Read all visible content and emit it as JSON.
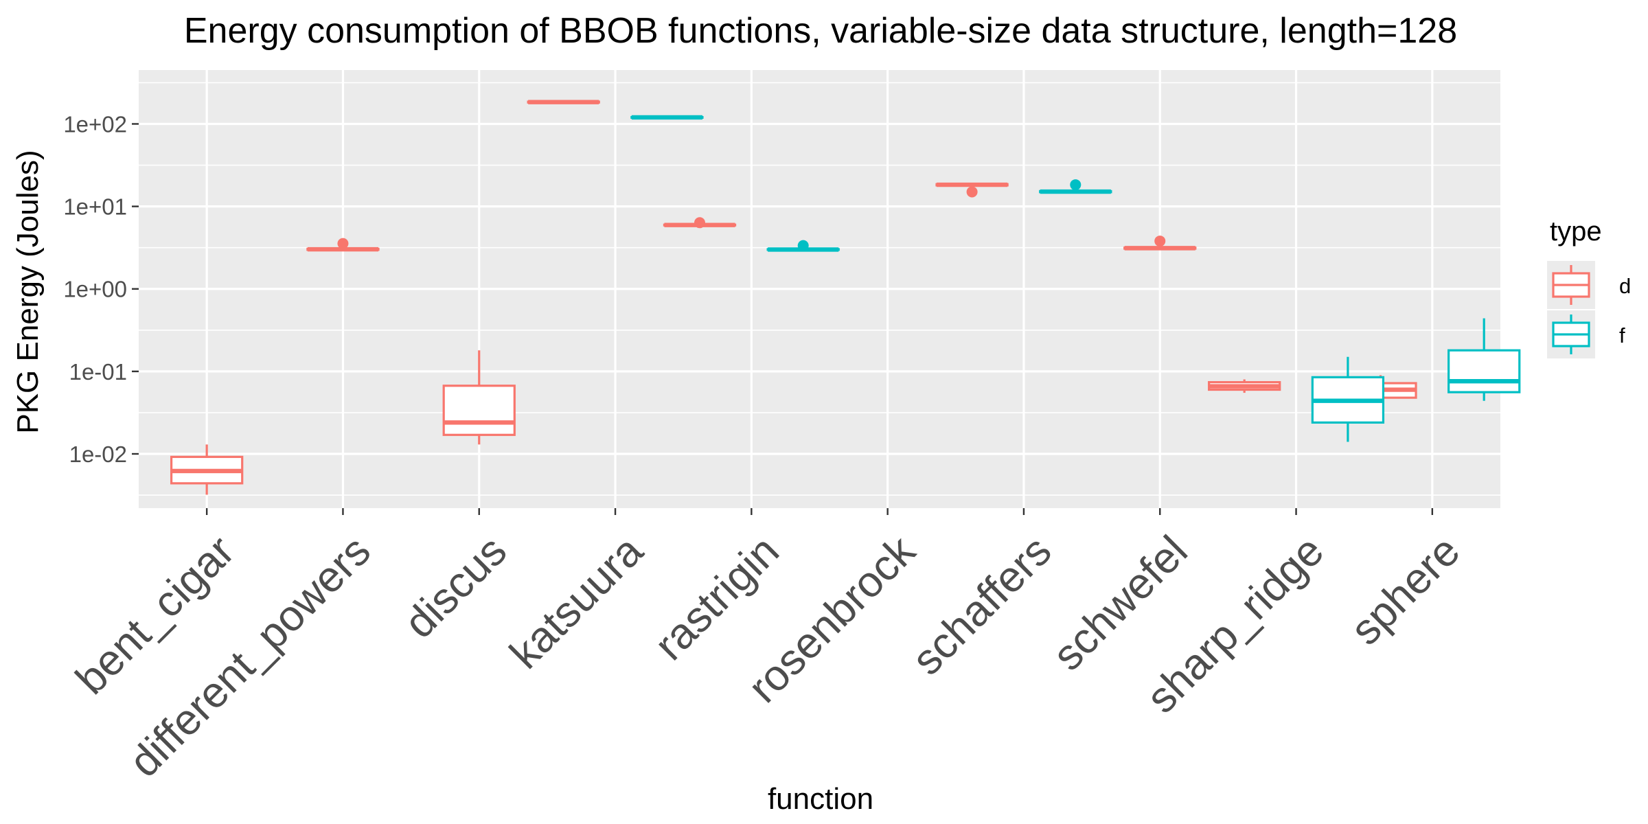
{
  "chart_data": {
    "type": "boxplot",
    "title": "Energy consumption of BBOB functions, variable-size data structure, length=128",
    "xlabel": "function",
    "ylabel": "PKG Energy (Joules)",
    "y_scale": "log10",
    "ylim": [
      0.0022,
      450
    ],
    "y_ticks": [
      {
        "value": 0.01,
        "label": "1e-02"
      },
      {
        "value": 0.1,
        "label": "1e-01"
      },
      {
        "value": 1,
        "label": "1e+00"
      },
      {
        "value": 10,
        "label": "1e+01"
      },
      {
        "value": 100,
        "label": "1e+02"
      }
    ],
    "grid": true,
    "categories": [
      "bent_cigar",
      "different_powers",
      "discus",
      "katsuura",
      "rastrigin",
      "rosenbrock",
      "schaffers",
      "schwefel",
      "sharp_ridge",
      "sphere"
    ],
    "legend": {
      "title": "type",
      "position": "right",
      "entries": [
        {
          "label": "d",
          "color": "#F8766D"
        },
        {
          "label": "f",
          "color": "#00BFC4"
        }
      ]
    },
    "series": [
      {
        "name": "d",
        "color": "#F8766D",
        "boxes": [
          {
            "category": "bent_cigar",
            "min": 0.0032,
            "q1": 0.0044,
            "median": 0.0062,
            "q3": 0.0092,
            "max": 0.013,
            "outliers": []
          },
          {
            "category": "different_powers",
            "min": 2.95,
            "q1": 2.98,
            "median": 3.02,
            "q3": 3.06,
            "max": 3.1,
            "outliers": [
              3.55
            ]
          },
          {
            "category": "discus",
            "min": 0.013,
            "q1": 0.017,
            "median": 0.024,
            "q3": 0.067,
            "max": 0.18,
            "outliers": []
          },
          {
            "category": "katsuura",
            "min": 180,
            "q1": 182,
            "median": 184,
            "q3": 186,
            "max": 188,
            "outliers": []
          },
          {
            "category": "rastrigin",
            "min": 5.85,
            "q1": 5.9,
            "median": 5.95,
            "q3": 6.0,
            "max": 6.05,
            "outliers": [
              6.35
            ]
          },
          {
            "category": "schaffers",
            "min": 17.8,
            "q1": 18.0,
            "median": 18.3,
            "q3": 18.6,
            "max": 18.9,
            "outliers": [
              15.0
            ]
          },
          {
            "category": "schwefel",
            "min": 3.05,
            "q1": 3.08,
            "median": 3.12,
            "q3": 3.16,
            "max": 3.2,
            "outliers": [
              3.8
            ]
          },
          {
            "category": "sharp_ridge",
            "min": 0.055,
            "q1": 0.06,
            "median": 0.066,
            "q3": 0.074,
            "max": 0.08,
            "outliers": []
          },
          {
            "category": "sphere",
            "min": 0.044,
            "q1": 0.048,
            "median": 0.06,
            "q3": 0.072,
            "max": 0.09,
            "outliers": []
          }
        ]
      },
      {
        "name": "f",
        "color": "#00BFC4",
        "boxes": [
          {
            "category": "katsuura",
            "min": 118,
            "q1": 119,
            "median": 120,
            "q3": 121,
            "max": 122,
            "outliers": []
          },
          {
            "category": "rastrigin",
            "min": 2.95,
            "q1": 2.98,
            "median": 3.0,
            "q3": 3.03,
            "max": 3.06,
            "outliers": [
              3.35
            ]
          },
          {
            "category": "schaffers",
            "min": 14.7,
            "q1": 14.9,
            "median": 15.1,
            "q3": 15.3,
            "max": 15.5,
            "outliers": [
              18.3
            ]
          },
          {
            "category": "sharp_ridge",
            "min": 0.014,
            "q1": 0.024,
            "median": 0.044,
            "q3": 0.085,
            "max": 0.15,
            "outliers": []
          },
          {
            "category": "sphere",
            "min": 0.044,
            "q1": 0.056,
            "median": 0.076,
            "q3": 0.18,
            "max": 0.44,
            "outliers": []
          }
        ]
      }
    ]
  }
}
